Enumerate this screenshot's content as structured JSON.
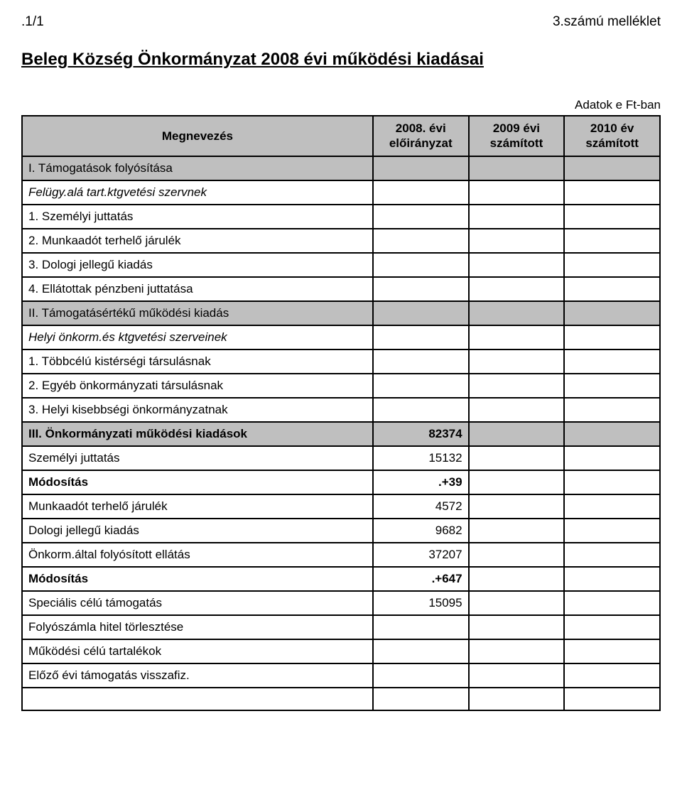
{
  "header": {
    "left": ".1/1",
    "right": "3.számú melléklet"
  },
  "title": "Beleg Község Önkormányzat 2008 évi működési kiadásai",
  "unit": "Adatok e Ft-ban",
  "columns": {
    "c1": "Megnevezés",
    "c2_line1": "2008. évi",
    "c2_line2": "előirányzat",
    "c3_line1": "2009 évi",
    "c3_line2": "számított",
    "c4_line1": "2010 év",
    "c4_line2": "számított"
  },
  "rows": [
    {
      "label": "I. Támogatások folyósítása",
      "v1": "",
      "v2": "",
      "v3": "",
      "shaded": true,
      "bold": false,
      "italic": false
    },
    {
      "label": "Felügy.alá tart.ktgvetési szervnek",
      "v1": "",
      "v2": "",
      "v3": "",
      "shaded": false,
      "bold": false,
      "italic": true
    },
    {
      "label": "1. Személyi juttatás",
      "v1": "",
      "v2": "",
      "v3": "",
      "shaded": false,
      "bold": false,
      "italic": false
    },
    {
      "label": "2. Munkaadót terhelő járulék",
      "v1": "",
      "v2": "",
      "v3": "",
      "shaded": false,
      "bold": false,
      "italic": false
    },
    {
      "label": "3. Dologi jellegű kiadás",
      "v1": "",
      "v2": "",
      "v3": "",
      "shaded": false,
      "bold": false,
      "italic": false
    },
    {
      "label": "4. Ellátottak pénzbeni juttatása",
      "v1": "",
      "v2": "",
      "v3": "",
      "shaded": false,
      "bold": false,
      "italic": false
    },
    {
      "label": "II. Támogatásértékű működési kiadás",
      "v1": "",
      "v2": "",
      "v3": "",
      "shaded": true,
      "bold": false,
      "italic": false
    },
    {
      "label": "Helyi önkorm.és ktgvetési szerveinek",
      "v1": "",
      "v2": "",
      "v3": "",
      "shaded": false,
      "bold": false,
      "italic": true
    },
    {
      "label": "1. Többcélú kistérségi társulásnak",
      "v1": "",
      "v2": "",
      "v3": "",
      "shaded": false,
      "bold": false,
      "italic": false
    },
    {
      "label": "2. Egyéb önkormányzati társulásnak",
      "v1": "",
      "v2": "",
      "v3": "",
      "shaded": false,
      "bold": false,
      "italic": false
    },
    {
      "label": "3. Helyi kisebbségi önkormányzatnak",
      "v1": "",
      "v2": "",
      "v3": "",
      "shaded": false,
      "bold": false,
      "italic": false
    },
    {
      "label": "III. Önkormányzati működési kiadások",
      "v1": "82374",
      "v2": "",
      "v3": "",
      "shaded": true,
      "bold": true,
      "italic": false
    },
    {
      "label": "Személyi juttatás",
      "v1": "15132",
      "v2": "",
      "v3": "",
      "shaded": false,
      "bold": false,
      "italic": false
    },
    {
      "label": "Módosítás",
      "v1": ".+39",
      "v2": "",
      "v3": "",
      "shaded": false,
      "bold": true,
      "italic": false
    },
    {
      "label": "Munkaadót terhelő járulék",
      "v1": "4572",
      "v2": "",
      "v3": "",
      "shaded": false,
      "bold": false,
      "italic": false
    },
    {
      "label": "Dologi jellegű kiadás",
      "v1": "9682",
      "v2": "",
      "v3": "",
      "shaded": false,
      "bold": false,
      "italic": false
    },
    {
      "label": "Önkorm.által folyósított ellátás",
      "v1": "37207",
      "v2": "",
      "v3": "",
      "shaded": false,
      "bold": false,
      "italic": false
    },
    {
      "label": "Módosítás",
      "v1": ".+647",
      "v2": "",
      "v3": "",
      "shaded": false,
      "bold": true,
      "italic": false
    },
    {
      "label": "Speciális célú támogatás",
      "v1": "15095",
      "v2": "",
      "v3": "",
      "shaded": false,
      "bold": false,
      "italic": false
    },
    {
      "label": "Folyószámla hitel törlesztése",
      "v1": "",
      "v2": "",
      "v3": "",
      "shaded": false,
      "bold": false,
      "italic": false
    },
    {
      "label": "Működési célú tartalékok",
      "v1": "",
      "v2": "",
      "v3": "",
      "shaded": false,
      "bold": false,
      "italic": false
    },
    {
      "label": "Előző évi támogatás visszafiz.",
      "v1": "",
      "v2": "",
      "v3": "",
      "shaded": false,
      "bold": false,
      "italic": false
    },
    {
      "label": "",
      "v1": "",
      "v2": "",
      "v3": "",
      "shaded": false,
      "bold": false,
      "italic": false
    }
  ],
  "style": {
    "page_bg": "#ffffff",
    "text_color": "#000000",
    "shade_color": "#bfbfbf",
    "border_color": "#000000",
    "title_fontsize": 24,
    "header_fontsize": 19,
    "cell_fontsize": 17
  }
}
